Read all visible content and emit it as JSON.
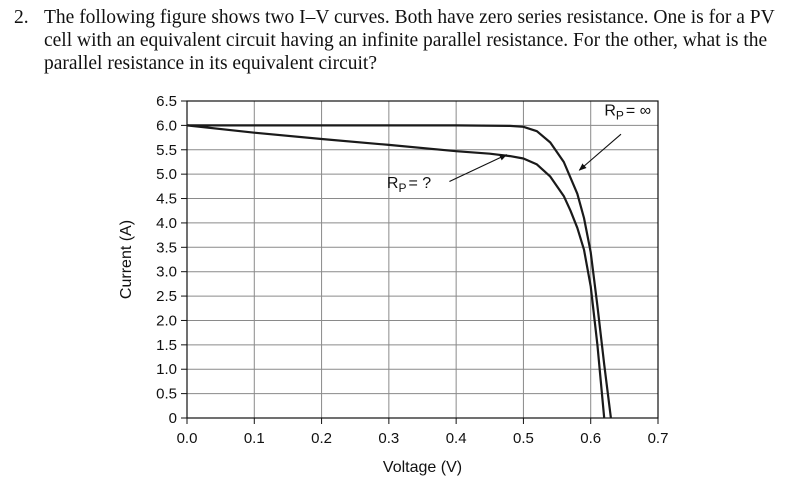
{
  "question": {
    "number": "2.",
    "text": "The following figure shows two I–V curves. Both have zero series resistance. One is for a PV cell with an equivalent circuit having an infinite parallel resistance. For the other, what is the parallel resistance in its equivalent circuit?"
  },
  "chart_data": {
    "type": "line",
    "xlabel": "Voltage (V)",
    "ylabel": "Current (A)",
    "xlim": [
      0,
      0.7
    ],
    "ylim": [
      0,
      6.5
    ],
    "x_ticks": [
      "0.0",
      "0.1",
      "0.2",
      "0.3",
      "0.4",
      "0.5",
      "0.6",
      "0.7"
    ],
    "y_ticks": [
      "0",
      "0.5",
      "1.0",
      "1.5",
      "2.0",
      "2.5",
      "3.0",
      "3.5",
      "4.0",
      "4.5",
      "5.0",
      "5.5",
      "6.0",
      "6.5"
    ],
    "grid": true,
    "series": [
      {
        "x": [
          0.0,
          0.1,
          0.2,
          0.3,
          0.4,
          0.48,
          0.5,
          0.52,
          0.54,
          0.56,
          0.58,
          0.59,
          0.6,
          0.61,
          0.62,
          0.63
        ],
        "y": [
          6.0,
          6.0,
          6.0,
          6.0,
          6.0,
          5.99,
          5.97,
          5.88,
          5.65,
          5.25,
          4.6,
          4.1,
          3.4,
          2.3,
          1.1,
          0.0
        ]
      },
      {
        "x": [
          0.0,
          0.1,
          0.2,
          0.3,
          0.4,
          0.45,
          0.48,
          0.5,
          0.52,
          0.54,
          0.56,
          0.57,
          0.58,
          0.59,
          0.6,
          0.61,
          0.62
        ],
        "y": [
          6.0,
          5.85,
          5.72,
          5.6,
          5.47,
          5.42,
          5.37,
          5.32,
          5.2,
          4.95,
          4.55,
          4.25,
          3.9,
          3.45,
          2.7,
          1.5,
          0.0
        ]
      }
    ],
    "annotations": [
      {
        "label": "Rp = ∞",
        "main": "R",
        "sub": "P",
        "suffix": "= ∞",
        "x": 0.655,
        "y": 6.2,
        "arrow_from": [
          0.645,
          5.82
        ],
        "arrow_to": [
          0.583,
          5.08
        ]
      },
      {
        "label": "Rp = ?",
        "main": "R",
        "sub": "P",
        "suffix": "= ?",
        "x": 0.33,
        "y": 4.72,
        "arrow_from": [
          0.39,
          4.85
        ],
        "arrow_to": [
          0.475,
          5.4
        ]
      }
    ]
  }
}
